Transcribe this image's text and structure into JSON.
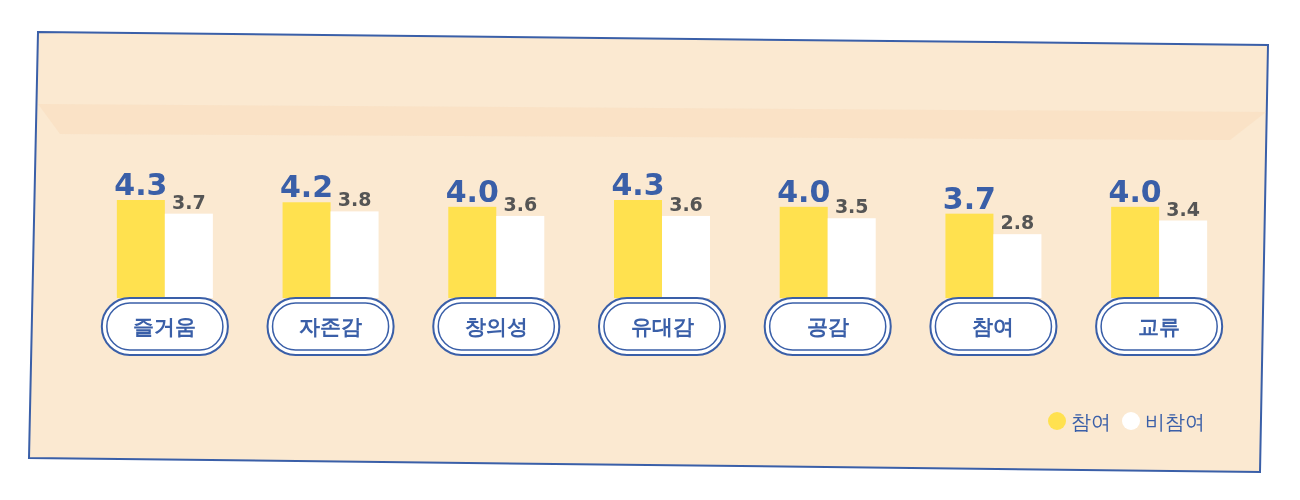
{
  "chart_data": {
    "type": "bar",
    "categories": [
      "즐거움",
      "자존감",
      "창의성",
      "유대감",
      "공감",
      "참여",
      "교류"
    ],
    "series": [
      {
        "name": "참여",
        "color": "#ffe14f",
        "values": [
          4.3,
          4.2,
          4.0,
          4.3,
          4.0,
          3.7,
          4.0
        ],
        "value_labels": [
          "4.3",
          "4.2",
          "4.0",
          "4.3",
          "4.0",
          "3.7",
          "4.0"
        ]
      },
      {
        "name": "비참여",
        "color": "#ffffff",
        "values": [
          3.7,
          3.8,
          3.6,
          3.6,
          3.5,
          2.8,
          3.4
        ],
        "value_labels": [
          "3.7",
          "3.8",
          "3.6",
          "3.6",
          "3.5",
          "2.8",
          "3.4"
        ]
      }
    ],
    "legend": "bottom right"
  }
}
